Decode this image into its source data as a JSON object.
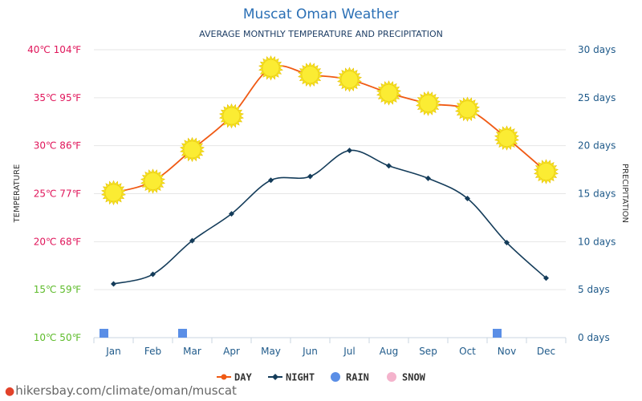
{
  "chart_data": {
    "type": "line",
    "title": "Muscat Oman Weather",
    "subtitle": "AVERAGE MONTHLY TEMPERATURE AND PRECIPITATION",
    "ylabel": "TEMPERATURE",
    "ylabel_right": "PRECIPITATION",
    "categories": [
      "Jan",
      "Feb",
      "Mar",
      "Apr",
      "May",
      "Jun",
      "Jul",
      "Aug",
      "Sep",
      "Oct",
      "Nov",
      "Dec"
    ],
    "ylim": [
      10,
      40
    ],
    "ylim_right": [
      0,
      30
    ],
    "yticks": [
      {
        "value": 40,
        "label": "40℃ 104℉",
        "color": "#e0155a"
      },
      {
        "value": 35,
        "label": "35℃ 95℉",
        "color": "#e0155a"
      },
      {
        "value": 30,
        "label": "30℃ 86℉",
        "color": "#e0155a"
      },
      {
        "value": 25,
        "label": "25℃ 77℉",
        "color": "#e0155a"
      },
      {
        "value": 20,
        "label": "20℃ 68℉",
        "color": "#e0155a"
      },
      {
        "value": 15,
        "label": "15℃ 59℉",
        "color": "#5dbb2a"
      },
      {
        "value": 10,
        "label": "10℃ 50℉",
        "color": "#5dbb2a"
      }
    ],
    "yticks_right": [
      {
        "value": 30,
        "label": "30 days"
      },
      {
        "value": 25,
        "label": "25 days"
      },
      {
        "value": 20,
        "label": "20 days"
      },
      {
        "value": 15,
        "label": "15 days"
      },
      {
        "value": 10,
        "label": "10 days"
      },
      {
        "value": 5,
        "label": "5 days"
      },
      {
        "value": 0,
        "label": "0 days"
      }
    ],
    "series": [
      {
        "name": "DAY",
        "color": "#f05a14",
        "marker": "sun-icon",
        "values": [
          25.1,
          26.3,
          29.6,
          33.1,
          38.1,
          37.4,
          36.9,
          35.5,
          34.4,
          33.8,
          30.8,
          27.3
        ]
      },
      {
        "name": "NIGHT",
        "color": "#143c5a",
        "marker": "diamond",
        "values": [
          15.6,
          16.6,
          20.1,
          22.9,
          26.4,
          26.8,
          29.5,
          27.9,
          26.6,
          24.5,
          19.9,
          16.2
        ]
      },
      {
        "name": "RAIN",
        "color": "#5a8ee6",
        "unit": "days",
        "values": [
          0.5,
          0,
          0.5,
          0,
          0,
          0,
          0,
          0,
          0,
          0,
          0.5,
          0
        ]
      },
      {
        "name": "SNOW",
        "color": "#f4b3cc",
        "unit": "days",
        "values": [
          0,
          0,
          0,
          0,
          0,
          0,
          0,
          0,
          0,
          0,
          0,
          0
        ]
      }
    ],
    "grid": true,
    "legend_position": "bottom-center"
  },
  "footer": {
    "text": "hikersbay.com/climate/oman/muscat"
  }
}
